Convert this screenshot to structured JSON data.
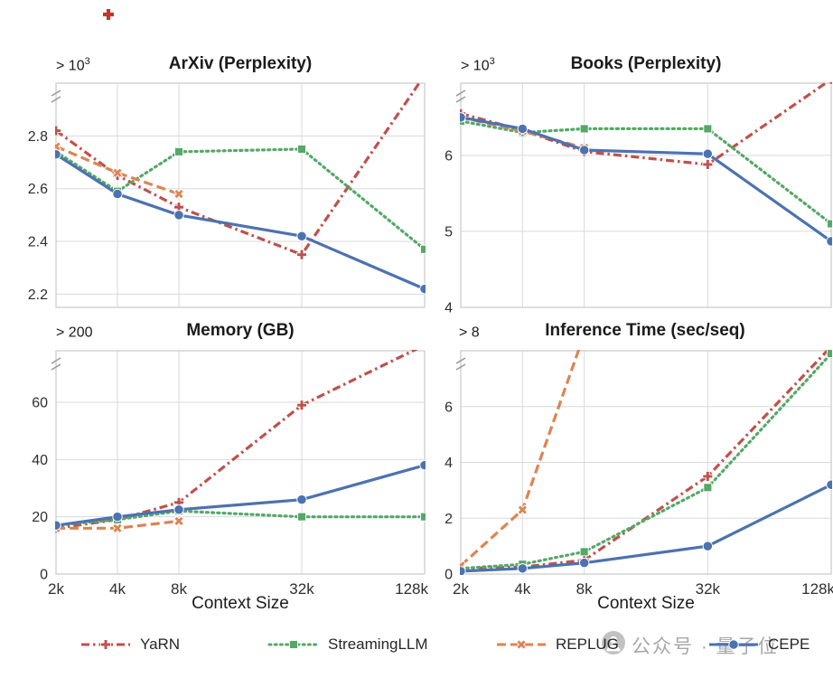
{
  "figure": {
    "watermark": {
      "text": "公众号 · 量子位"
    }
  },
  "legend": {
    "items": [
      {
        "label": "YaRN",
        "color": "#c0504b",
        "dash": "dashdot",
        "marker": "plus"
      },
      {
        "label": "StreamingLLM",
        "color": "#55a868",
        "dash": "dotted",
        "marker": "square"
      },
      {
        "label": "REPLUG",
        "color": "#dd8452",
        "dash": "dashed",
        "marker": "x"
      },
      {
        "label": "CEPE",
        "color": "#4c72b0",
        "dash": "solid",
        "marker": "circle"
      }
    ]
  },
  "chart_data": [
    {
      "type": "line",
      "title": "ArXiv (Perplexity)",
      "clip_note": {
        "base": "> 10",
        "sup": "3"
      },
      "categories": [
        "2k",
        "4k",
        "8k",
        "32k",
        "128k"
      ],
      "x_positions": [
        0,
        1,
        2,
        4,
        6
      ],
      "ylim": [
        2.15,
        3.0
      ],
      "yticks": [
        {
          "v": 2.2,
          "label": "2.2"
        },
        {
          "v": 2.4,
          "label": "2.4"
        },
        {
          "v": 2.6,
          "label": "2.6"
        },
        {
          "v": 2.8,
          "label": "2.8"
        }
      ],
      "xlabel": "",
      "grid": true,
      "legend_position": "bottom-figure",
      "series": [
        {
          "name": "YaRN",
          "color": "#c0504b",
          "dash": "dashdot",
          "marker": "plus",
          "values": [
            2.82,
            2.65,
            2.53,
            2.35,
            3.03
          ]
        },
        {
          "name": "StreamingLLM",
          "color": "#55a868",
          "dash": "dotted",
          "marker": "square",
          "values": [
            2.74,
            2.59,
            2.74,
            2.75,
            2.37
          ]
        },
        {
          "name": "REPLUG",
          "color": "#dd8452",
          "dash": "dashed",
          "marker": "x",
          "values": [
            2.76,
            2.66,
            2.58,
            null,
            null
          ]
        },
        {
          "name": "CEPE",
          "color": "#4c72b0",
          "dash": "solid",
          "marker": "circle",
          "values": [
            2.73,
            2.58,
            2.5,
            2.42,
            2.22
          ]
        }
      ]
    },
    {
      "type": "line",
      "title": "Books (Perplexity)",
      "clip_note": {
        "base": "> 10",
        "sup": "3"
      },
      "categories": [
        "2k",
        "4k",
        "8k",
        "32k",
        "128k"
      ],
      "x_positions": [
        0,
        1,
        2,
        4,
        6
      ],
      "ylim": [
        4.0,
        6.95
      ],
      "yticks": [
        {
          "v": 4,
          "label": "4"
        },
        {
          "v": 5,
          "label": "5"
        },
        {
          "v": 6,
          "label": "6"
        }
      ],
      "xlabel": "",
      "grid": true,
      "series": [
        {
          "name": "YaRN",
          "color": "#c0504b",
          "dash": "dashdot",
          "marker": "plus",
          "values": [
            6.55,
            6.33,
            6.05,
            5.88,
            7.0
          ]
        },
        {
          "name": "StreamingLLM",
          "color": "#55a868",
          "dash": "dotted",
          "marker": "square",
          "values": [
            6.45,
            6.3,
            6.35,
            6.35,
            5.1
          ]
        },
        {
          "name": "REPLUG",
          "color": "#dd8452",
          "dash": "dashed",
          "marker": "x",
          "values": [
            6.5,
            6.32,
            6.1,
            null,
            null
          ]
        },
        {
          "name": "CEPE",
          "color": "#4c72b0",
          "dash": "solid",
          "marker": "circle",
          "values": [
            6.5,
            6.35,
            6.07,
            6.02,
            4.87
          ]
        }
      ]
    },
    {
      "type": "line",
      "title": "Memory (GB)",
      "clip_note": {
        "base": "> 200",
        "sup": ""
      },
      "categories": [
        "2k",
        "4k",
        "8k",
        "32k",
        "128k"
      ],
      "x_positions": [
        0,
        1,
        2,
        4,
        6
      ],
      "ylim": [
        0,
        78
      ],
      "yticks": [
        {
          "v": 0,
          "label": "0"
        },
        {
          "v": 20,
          "label": "20"
        },
        {
          "v": 40,
          "label": "40"
        },
        {
          "v": 60,
          "label": "60"
        }
      ],
      "xlabel": "Context Size",
      "grid": true,
      "series": [
        {
          "name": "YaRN",
          "color": "#c0504b",
          "dash": "dashdot",
          "marker": "plus",
          "values": [
            16,
            19,
            25,
            59,
            80
          ]
        },
        {
          "name": "StreamingLLM",
          "color": "#55a868",
          "dash": "dotted",
          "marker": "square",
          "values": [
            17,
            19,
            22,
            20,
            20
          ]
        },
        {
          "name": "REPLUG",
          "color": "#dd8452",
          "dash": "dashed",
          "marker": "x",
          "values": [
            16,
            16,
            18.5,
            null,
            null
          ]
        },
        {
          "name": "CEPE",
          "color": "#4c72b0",
          "dash": "solid",
          "marker": "circle",
          "values": [
            17,
            20,
            22.5,
            26,
            38
          ]
        }
      ]
    },
    {
      "type": "line",
      "title": "Inference Time (sec/seq)",
      "clip_note": {
        "base": "> 8",
        "sup": ""
      },
      "categories": [
        "2k",
        "4k",
        "8k",
        "32k",
        "128k"
      ],
      "x_positions": [
        0,
        1,
        2,
        4,
        6
      ],
      "ylim": [
        0,
        8
      ],
      "yticks": [
        {
          "v": 0,
          "label": "0"
        },
        {
          "v": 2,
          "label": "2"
        },
        {
          "v": 4,
          "label": "4"
        },
        {
          "v": 6,
          "label": "6"
        }
      ],
      "xlabel": "Context Size",
      "grid": true,
      "series": [
        {
          "name": "YaRN",
          "color": "#c0504b",
          "dash": "dashdot",
          "marker": "plus",
          "values": [
            0.2,
            0.25,
            0.5,
            3.5,
            8.15
          ]
        },
        {
          "name": "StreamingLLM",
          "color": "#55a868",
          "dash": "dotted",
          "marker": "square",
          "values": [
            0.2,
            0.35,
            0.8,
            3.1,
            7.9
          ]
        },
        {
          "name": "REPLUG",
          "color": "#dd8452",
          "dash": "dashed",
          "marker": "x",
          "values": [
            0.3,
            2.3,
            8.6,
            null,
            null
          ]
        },
        {
          "name": "CEPE",
          "color": "#4c72b0",
          "dash": "solid",
          "marker": "circle",
          "values": [
            0.1,
            0.2,
            0.4,
            1.0,
            3.2
          ]
        }
      ]
    }
  ]
}
